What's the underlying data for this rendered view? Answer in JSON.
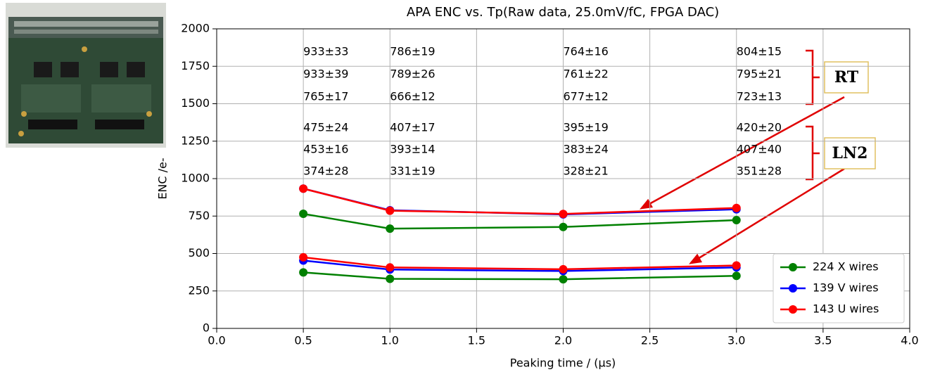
{
  "chart_data": {
    "type": "line",
    "title": "APA ENC vs. Tp(Raw data, 25.0mV/fC, FPGA DAC)",
    "x_label": "Peaking time / (μs)",
    "y_label": "ENC /e-",
    "x": [
      0.5,
      1.0,
      2.0,
      3.0
    ],
    "xlim": [
      0,
      4
    ],
    "xticks": [
      {
        "value": 0,
        "label": "0.0"
      },
      {
        "value": 0.5,
        "label": "0.5"
      },
      {
        "value": 1,
        "label": "1.0"
      },
      {
        "value": 1.5,
        "label": "1.5"
      },
      {
        "value": 2,
        "label": "2.0"
      },
      {
        "value": 2.5,
        "label": "2.5"
      },
      {
        "value": 3,
        "label": "3.0"
      },
      {
        "value": 3.5,
        "label": "3.5"
      },
      {
        "value": 4,
        "label": "4.0"
      }
    ],
    "ylim": [
      0,
      2000
    ],
    "yticks": [
      0,
      250,
      500,
      750,
      1000,
      1250,
      1500,
      1750,
      2000
    ],
    "grid": true,
    "legend": "lower right",
    "series": [
      {
        "name": "224 X wires",
        "color": "#008000",
        "values": [
          765,
          666,
          677,
          723
        ],
        "value_labels": [
          "765±17",
          "666±12",
          "677±12",
          "723±13"
        ]
      },
      {
        "name": "139 V wires",
        "color": "#0000ff",
        "values": [
          933,
          789,
          761,
          795
        ],
        "value_labels": [
          "933±39",
          "789±26",
          "761±22",
          "795±21"
        ]
      },
      {
        "name": "143 U wires",
        "color": "#ff0000",
        "values": [
          933,
          786,
          764,
          804
        ],
        "value_labels": [
          "933±33",
          "786±19",
          "764±16",
          "804±15"
        ]
      },
      {
        "color": "#008000",
        "values": [
          374,
          331,
          328,
          351
        ],
        "value_labels": [
          "374±28",
          "331±19",
          "328±21",
          "351±28"
        ]
      },
      {
        "color": "#0000ff",
        "values": [
          453,
          393,
          383,
          407
        ],
        "value_labels": [
          "453±16",
          "393±14",
          "383±24",
          "407±40"
        ]
      },
      {
        "color": "#ff0000",
        "values": [
          475,
          407,
          395,
          420
        ],
        "value_labels": [
          "475±24",
          "407±17",
          "395±19",
          "420±20"
        ]
      }
    ],
    "annotations": [
      {
        "text": "RT",
        "color": "#e00000"
      },
      {
        "text": "LN2",
        "color": "#1010d0"
      }
    ]
  }
}
